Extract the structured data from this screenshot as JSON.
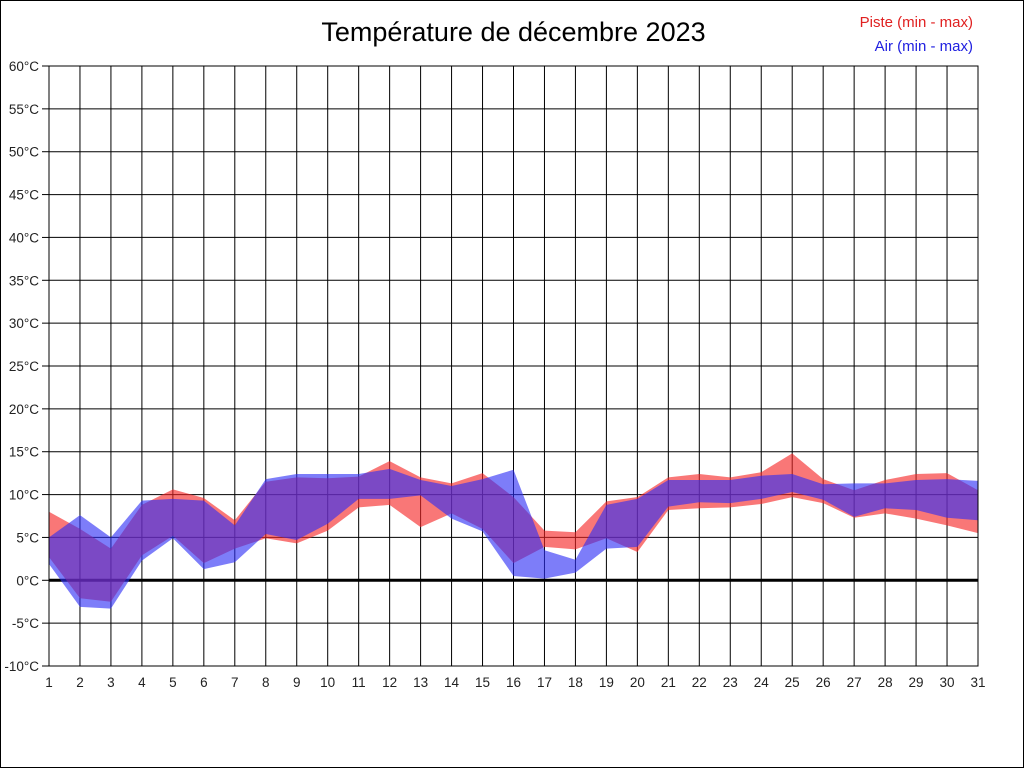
{
  "page": {
    "background": "#ffffff",
    "frame_border_color": "#000000"
  },
  "chart_data": {
    "type": "area",
    "subtype": "min-max-range-bands",
    "title": "Température de décembre 2023",
    "xlabel": "",
    "ylabel": "",
    "x_days": [
      1,
      2,
      3,
      4,
      5,
      6,
      7,
      8,
      9,
      10,
      11,
      12,
      13,
      14,
      15,
      16,
      17,
      18,
      19,
      20,
      21,
      22,
      23,
      24,
      25,
      26,
      27,
      28,
      29,
      30,
      31
    ],
    "yticks": [
      60,
      55,
      50,
      45,
      40,
      35,
      30,
      25,
      20,
      15,
      10,
      5,
      0,
      -5,
      -10
    ],
    "y_suffix": "°C",
    "ylim": [
      -10,
      60
    ],
    "grid": true,
    "grid_color": "#000000",
    "zero_line": true,
    "zero_line_width": 3,
    "axis_label_color": "#222222",
    "legend_position": "top-right",
    "series": [
      {
        "name": "Piste (min - max)",
        "fill": "rgba(246,35,35,0.62)",
        "legend_color": "#e02020",
        "min": [
          2.7,
          -2.1,
          -2.5,
          2.9,
          5.2,
          2.0,
          3.7,
          4.9,
          4.3,
          5.8,
          8.5,
          8.8,
          6.2,
          7.8,
          6.0,
          2.0,
          3.9,
          3.6,
          4.9,
          3.3,
          8.2,
          8.4,
          8.5,
          8.9,
          9.7,
          9.0,
          7.3,
          7.8,
          7.2,
          6.4,
          5.5
        ],
        "max": [
          8.0,
          6.0,
          3.7,
          8.8,
          10.6,
          9.6,
          7.0,
          11.5,
          12.0,
          11.9,
          12.1,
          13.9,
          12.0,
          11.3,
          12.5,
          9.7,
          5.8,
          5.6,
          9.2,
          9.7,
          12.0,
          12.4,
          12.0,
          12.6,
          14.8,
          11.8,
          10.5,
          11.7,
          12.4,
          12.5,
          10.5
        ]
      },
      {
        "name": "Air (min - max)",
        "fill": "rgba(45,45,245,0.62)",
        "legend_color": "#2020e0",
        "min": [
          1.9,
          -3.1,
          -3.3,
          2.3,
          4.9,
          1.3,
          2.1,
          5.4,
          4.7,
          6.6,
          9.5,
          9.5,
          9.9,
          7.2,
          5.7,
          0.5,
          0.2,
          0.9,
          3.7,
          3.9,
          8.6,
          9.1,
          9.0,
          9.5,
          10.3,
          9.4,
          7.4,
          8.4,
          8.2,
          7.3,
          7.0
        ],
        "max": [
          5.0,
          7.6,
          5.0,
          9.3,
          9.5,
          9.3,
          6.4,
          11.8,
          12.4,
          12.4,
          12.4,
          13.0,
          11.7,
          11.0,
          11.8,
          12.9,
          3.5,
          2.4,
          8.8,
          9.5,
          11.7,
          11.7,
          11.7,
          12.2,
          12.4,
          11.2,
          11.3,
          11.3,
          11.7,
          11.8,
          11.6
        ]
      }
    ]
  }
}
